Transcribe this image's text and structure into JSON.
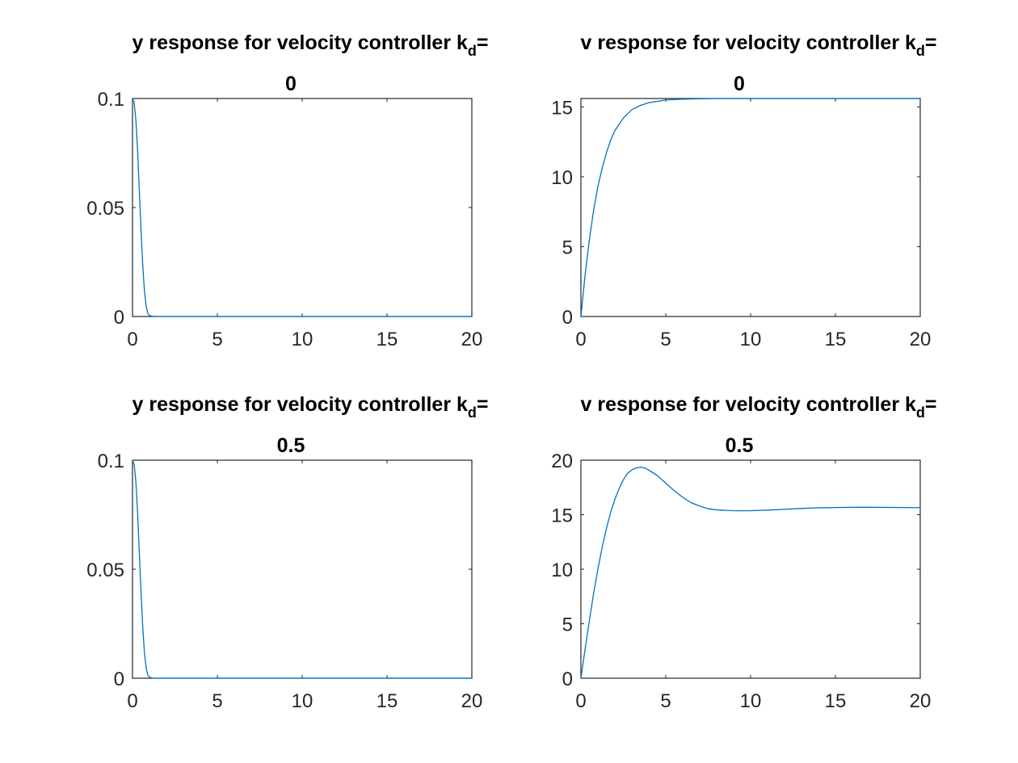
{
  "chart_data": [
    {
      "type": "line",
      "title_line1": "y response for velocity controller k",
      "title_subscript": "d",
      "title_suffix": "=",
      "title_line2": "0",
      "xlabel": "",
      "ylabel": "",
      "xlim": [
        0,
        20
      ],
      "ylim": [
        0,
        0.1
      ],
      "xticks": [
        0,
        5,
        10,
        15,
        20
      ],
      "xtick_labels": [
        "0",
        "5",
        "10",
        "15",
        "20"
      ],
      "yticks": [
        0,
        0.05,
        0.1
      ],
      "ytick_labels": [
        "0",
        "0.05",
        "0.1"
      ],
      "grid": false,
      "series": [
        {
          "color": "#0072bd",
          "x": [
            0,
            0.1,
            0.2,
            0.3,
            0.4,
            0.5,
            0.6,
            0.7,
            0.8,
            0.9,
            1.0,
            1.2,
            1.5,
            2,
            5,
            10,
            15,
            20
          ],
          "y": [
            0.1,
            0.098,
            0.09,
            0.076,
            0.058,
            0.04,
            0.024,
            0.012,
            0.005,
            0.0015,
            0.0004,
            0.0001,
            0,
            0,
            0,
            0,
            0,
            0
          ]
        }
      ]
    },
    {
      "type": "line",
      "title_line1": "v response for velocity controller k",
      "title_subscript": "d",
      "title_suffix": "=",
      "title_line2": "0",
      "xlabel": "",
      "ylabel": "",
      "xlim": [
        0,
        20
      ],
      "ylim": [
        0,
        15.6
      ],
      "xticks": [
        0,
        5,
        10,
        15,
        20
      ],
      "xtick_labels": [
        "0",
        "5",
        "10",
        "15",
        "20"
      ],
      "yticks": [
        0,
        5,
        10,
        15
      ],
      "ytick_labels": [
        "0",
        "5",
        "10",
        "15"
      ],
      "grid": false,
      "series": [
        {
          "color": "#0072bd",
          "x": [
            0,
            0.25,
            0.5,
            0.75,
            1,
            1.25,
            1.5,
            1.75,
            2,
            2.5,
            3,
            3.5,
            4,
            4.5,
            5,
            6,
            7,
            8,
            10,
            12,
            15,
            20
          ],
          "y": [
            0,
            3.0,
            5.5,
            7.6,
            9.3,
            10.6,
            11.7,
            12.6,
            13.3,
            14.2,
            14.8,
            15.1,
            15.3,
            15.4,
            15.5,
            15.55,
            15.58,
            15.6,
            15.6,
            15.6,
            15.6,
            15.6
          ]
        }
      ]
    },
    {
      "type": "line",
      "title_line1": "y response for velocity controller k",
      "title_subscript": "d",
      "title_suffix": "=",
      "title_line2": "0.5",
      "xlabel": "",
      "ylabel": "",
      "xlim": [
        0,
        20
      ],
      "ylim": [
        0,
        0.1
      ],
      "xticks": [
        0,
        5,
        10,
        15,
        20
      ],
      "xtick_labels": [
        "0",
        "5",
        "10",
        "15",
        "20"
      ],
      "yticks": [
        0,
        0.05,
        0.1
      ],
      "ytick_labels": [
        "0",
        "0.05",
        "0.1"
      ],
      "grid": false,
      "series": [
        {
          "color": "#0072bd",
          "x": [
            0,
            0.1,
            0.2,
            0.3,
            0.4,
            0.5,
            0.6,
            0.7,
            0.8,
            0.9,
            1.0,
            1.2,
            1.5,
            2,
            5,
            10,
            15,
            20
          ],
          "y": [
            0.1,
            0.098,
            0.09,
            0.076,
            0.058,
            0.04,
            0.024,
            0.012,
            0.005,
            0.0015,
            0.0004,
            0.0001,
            0,
            0,
            0,
            0,
            0,
            0
          ]
        }
      ]
    },
    {
      "type": "line",
      "title_line1": "v response for velocity controller k",
      "title_subscript": "d",
      "title_suffix": "=",
      "title_line2": "0.5",
      "xlabel": "",
      "ylabel": "",
      "xlim": [
        0,
        20
      ],
      "ylim": [
        0,
        20
      ],
      "xticks": [
        0,
        5,
        10,
        15,
        20
      ],
      "xtick_labels": [
        "0",
        "5",
        "10",
        "15",
        "20"
      ],
      "yticks": [
        0,
        5,
        10,
        15,
        20
      ],
      "ytick_labels": [
        "0",
        "5",
        "10",
        "15",
        "20"
      ],
      "grid": false,
      "series": [
        {
          "color": "#0072bd",
          "x": [
            0,
            0.25,
            0.5,
            0.75,
            1,
            1.25,
            1.5,
            1.75,
            2,
            2.25,
            2.5,
            2.75,
            3,
            3.25,
            3.5,
            3.75,
            4,
            4.5,
            5,
            5.5,
            6,
            6.5,
            7,
            7.5,
            8,
            8.5,
            9,
            9.5,
            10,
            11,
            12,
            13,
            14,
            15,
            16,
            17,
            18,
            19,
            20
          ],
          "y": [
            0,
            2.7,
            5.3,
            7.8,
            10.0,
            12.0,
            13.7,
            15.2,
            16.4,
            17.4,
            18.2,
            18.8,
            19.1,
            19.3,
            19.35,
            19.3,
            19.1,
            18.6,
            17.9,
            17.2,
            16.6,
            16.1,
            15.8,
            15.55,
            15.45,
            15.4,
            15.37,
            15.36,
            15.37,
            15.42,
            15.5,
            15.58,
            15.63,
            15.66,
            15.68,
            15.68,
            15.67,
            15.66,
            15.65
          ]
        }
      ]
    }
  ]
}
